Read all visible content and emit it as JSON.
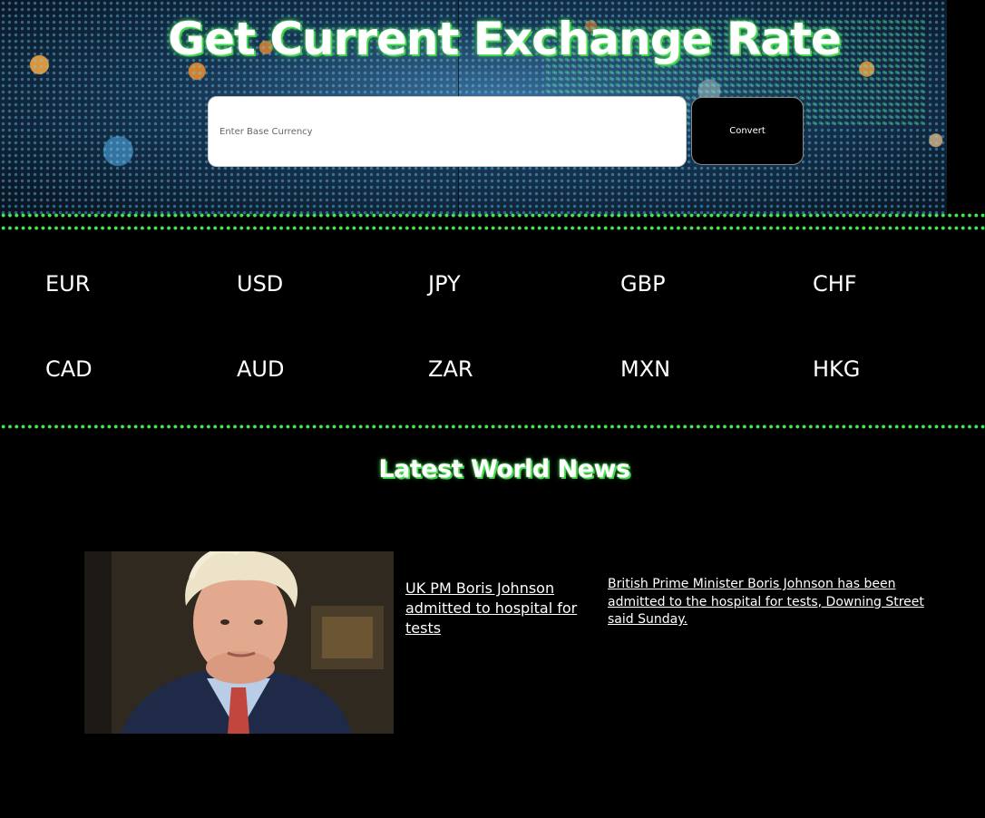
{
  "hero": {
    "title": "Get Current Exchange Rate",
    "input_placeholder": "Enter Base Currency",
    "input_value": "",
    "convert_label": "Convert"
  },
  "currencies": [
    "EUR",
    "USD",
    "JPY",
    "GBP",
    "CHF",
    "CAD",
    "AUD",
    "ZAR",
    "MXN",
    "HKG"
  ],
  "news": {
    "section_title": "Latest World News",
    "articles": [
      {
        "headline": "UK PM Boris Johnson admitted to hospital for tests",
        "description": "British Prime Minister Boris Johnson has been admitted to the hospital for tests, Downing Street said Sunday."
      }
    ]
  },
  "colors": {
    "background": "#000000",
    "accent_green": "#45e84e",
    "text": "#ffffff"
  }
}
